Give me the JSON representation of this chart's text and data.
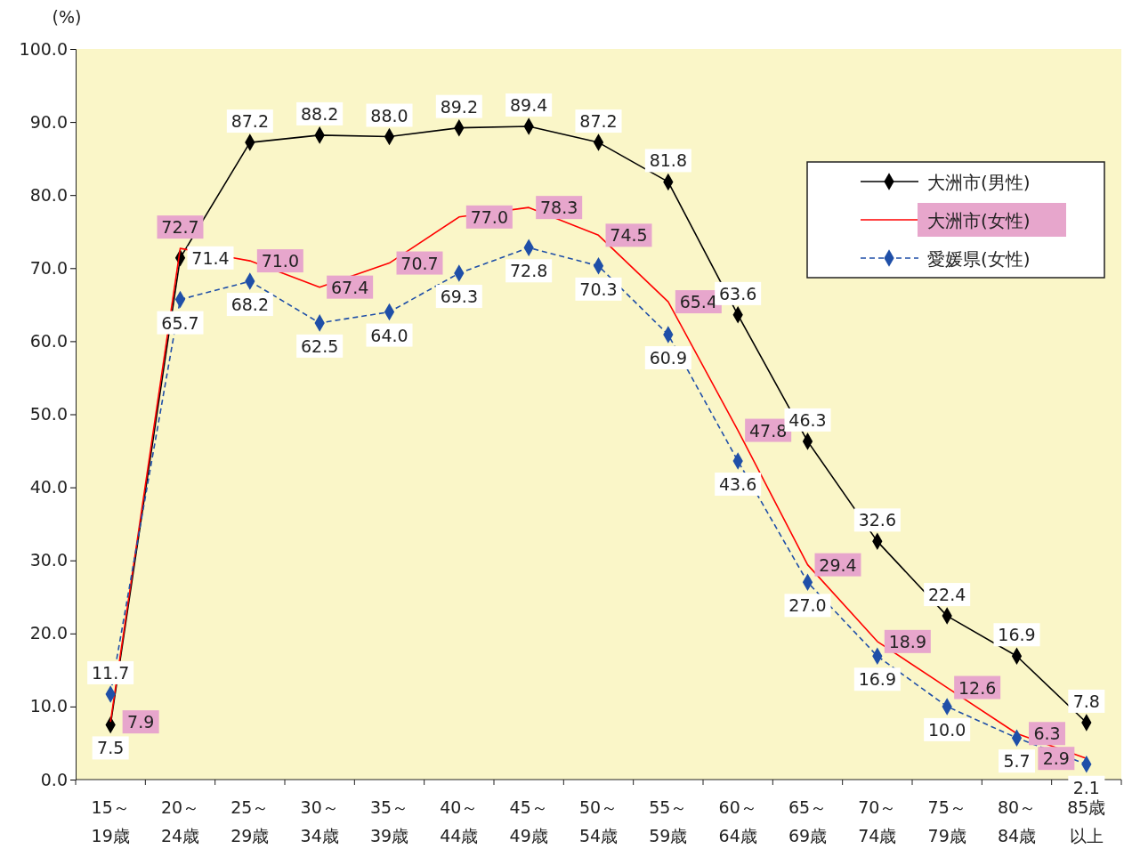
{
  "chart_data": {
    "type": "line",
    "ylabel": "(%)",
    "categories": [
      "15～19歳",
      "20～24歳",
      "25～29歳",
      "30～34歳",
      "35～39歳",
      "40～44歳",
      "45～49歳",
      "50～54歳",
      "55～59歳",
      "60～64歳",
      "65～69歳",
      "70～74歳",
      "75～79歳",
      "80～84歳",
      "85歳以上"
    ],
    "series": [
      {
        "name": "大洲市(男性)",
        "color": "#000000",
        "line_style": "solid",
        "marker": "diamond",
        "values": [
          7.5,
          71.4,
          87.2,
          88.2,
          88.0,
          89.2,
          89.4,
          87.2,
          81.8,
          63.6,
          46.3,
          32.6,
          22.4,
          16.9,
          7.8
        ],
        "value_labels": [
          "7.5",
          "71.4",
          "87.2",
          "88.2",
          "88.0",
          "89.2",
          "89.4",
          "87.2",
          "81.8",
          "63.6",
          "46.3",
          "32.6",
          "22.4",
          "16.9",
          "7.8"
        ]
      },
      {
        "name": "大洲市(女性)",
        "color": "#ff0000",
        "line_style": "solid",
        "marker": "none",
        "values": [
          7.9,
          72.7,
          71.0,
          67.4,
          70.7,
          77.0,
          78.3,
          74.5,
          65.4,
          47.8,
          29.4,
          18.9,
          12.6,
          6.3,
          2.9
        ],
        "value_labels": [
          "7.9",
          "72.7",
          "71.0",
          "67.4",
          "70.7",
          "77.0",
          "78.3",
          "74.5",
          "65.4",
          "47.8",
          "29.4",
          "18.9",
          "12.6",
          "6.3",
          "2.9"
        ]
      },
      {
        "name": "愛媛県(女性)",
        "color": "#1f4fa8",
        "line_style": "dashed",
        "marker": "diamond",
        "values": [
          11.7,
          65.7,
          68.2,
          62.5,
          64.0,
          69.3,
          72.8,
          70.3,
          60.9,
          43.6,
          27.0,
          16.9,
          10.0,
          5.7,
          2.1
        ],
        "value_labels": [
          "11.7",
          "65.7",
          "68.2",
          "62.5",
          "64.0",
          "69.3",
          "72.8",
          "70.3",
          "60.9",
          "43.6",
          "27.0",
          "16.9",
          "10.0",
          "5.7",
          "2.1"
        ]
      }
    ],
    "ylim": [
      0,
      100
    ],
    "yticks": [
      {
        "value": 0,
        "label": "0.0"
      },
      {
        "value": 10,
        "label": "10.0"
      },
      {
        "value": 20,
        "label": "20.0"
      },
      {
        "value": 30,
        "label": "30.0"
      },
      {
        "value": 40,
        "label": "40.0"
      },
      {
        "value": 50,
        "label": "50.0"
      },
      {
        "value": 60,
        "label": "60.0"
      },
      {
        "value": 70,
        "label": "70.0"
      },
      {
        "value": 80,
        "label": "80.0"
      },
      {
        "value": 90,
        "label": "90.0"
      },
      {
        "value": 100,
        "label": "100.0"
      }
    ],
    "legend": "top right"
  }
}
